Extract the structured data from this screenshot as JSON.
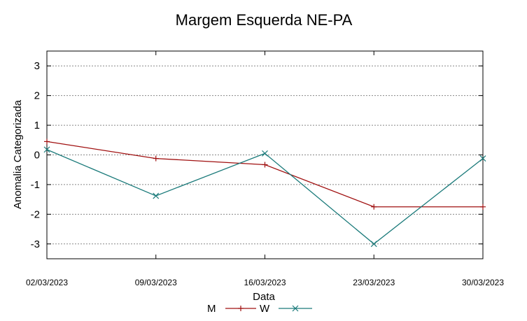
{
  "chart_data": {
    "type": "line",
    "title": "Margem Esquerda NE-PA",
    "xlabel": "Data",
    "ylabel": "Anomalia Categorizada",
    "categories": [
      "02/03/2023",
      "09/03/2023",
      "16/03/2023",
      "23/03/2023",
      "30/03/2023"
    ],
    "yticks": [
      3,
      2,
      1,
      0,
      -1,
      -2,
      -3
    ],
    "ytick_labels": [
      "3",
      "2",
      "1",
      "0",
      "-1",
      "-2",
      "-3"
    ],
    "ylim": [
      -3.5,
      3.5
    ],
    "grid": true,
    "legend_position": "bottom-center",
    "series": [
      {
        "name": "M",
        "color": "#a01010",
        "marker": "plus",
        "values": [
          0.45,
          -0.12,
          -0.33,
          -1.75,
          -1.75
        ]
      },
      {
        "name": "W",
        "color": "#1a7a7a",
        "marker": "cross",
        "values": [
          0.18,
          -1.38,
          0.05,
          -3.0,
          -0.12
        ]
      }
    ]
  }
}
